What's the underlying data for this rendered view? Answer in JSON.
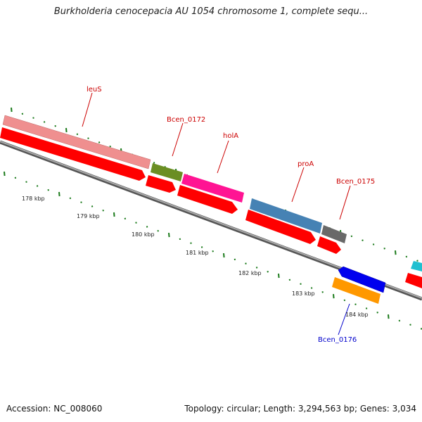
{
  "title": "Burkholderia cenocepacia AU 1054 chromosome 1, complete sequ...",
  "footer": {
    "accession": "Accession: NC_008060",
    "summary": "Topology: circular; Length: 3,294,563 bp; Genes: 3,034"
  },
  "scale_labels": [
    "178 kbp",
    "179 kbp",
    "180 kbp",
    "181 kbp",
    "182 kbp",
    "183 kbp",
    "184 kbp"
  ],
  "features": [
    {
      "label": "leuS",
      "color": "#ef8f8f",
      "strand": "forward"
    },
    {
      "label": "Bcen_0172",
      "color": "#6b8e23",
      "strand": "forward"
    },
    {
      "label": "holA",
      "color": "#ff1493",
      "strand": "forward"
    },
    {
      "label": "proA",
      "color": "#4682b4",
      "strand": "forward"
    },
    {
      "label": "Bcen_0175",
      "color": "#696969",
      "strand": "forward"
    },
    {
      "label": "Bcen_0176",
      "color": "#0000ee",
      "strand": "reverse"
    }
  ],
  "colors": {
    "cds": "#ff0000",
    "orange_gene": "#ff9800",
    "tick": "#1a7a1a",
    "backbone": "#7f7f7f",
    "label_red": "#cc0000",
    "label_blue": "#0000cc"
  }
}
